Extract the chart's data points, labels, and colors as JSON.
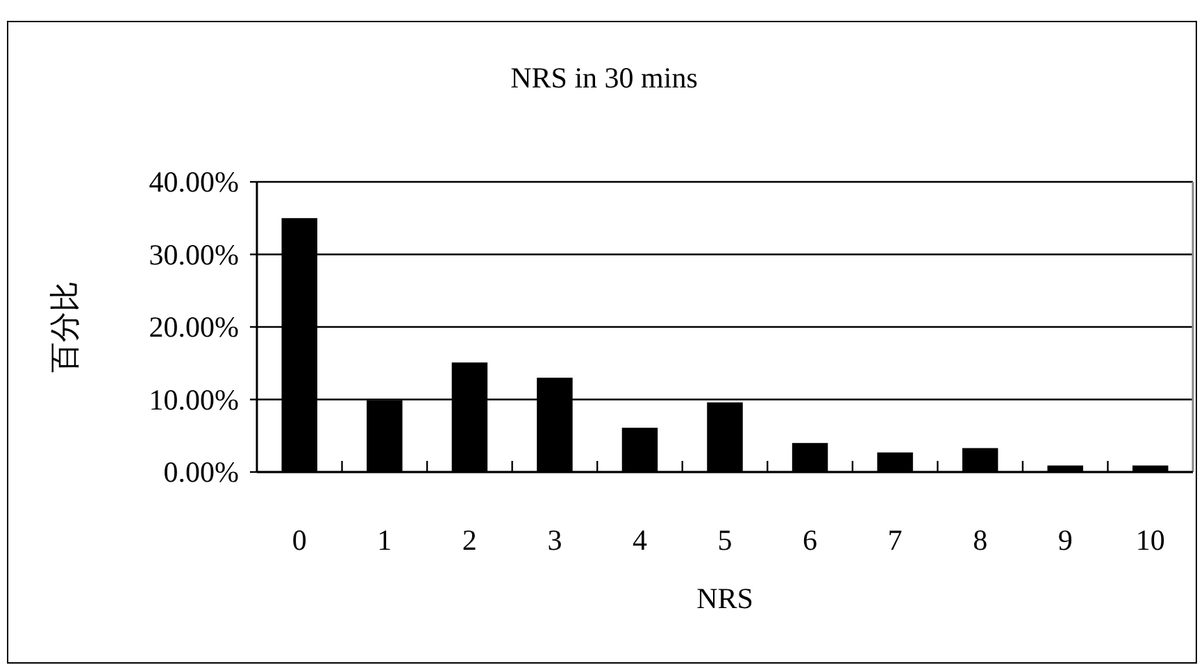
{
  "chart_data": {
    "type": "bar",
    "title": "NRS in 30 mins",
    "xlabel": "NRS",
    "ylabel": "百分比",
    "categories": [
      "0",
      "1",
      "2",
      "3",
      "4",
      "5",
      "6",
      "7",
      "8",
      "9",
      "10"
    ],
    "values": [
      35.0,
      9.9,
      15.1,
      13.0,
      6.1,
      9.6,
      4.0,
      2.7,
      3.3,
      0.9,
      0.9
    ],
    "color": "#000000",
    "ylim": [
      0,
      40
    ],
    "yticks": [
      {
        "value": 0,
        "label": "0.00%"
      },
      {
        "value": 10,
        "label": "10.00%"
      },
      {
        "value": 20,
        "label": "20.00%"
      },
      {
        "value": 30,
        "label": "30.00%"
      },
      {
        "value": 40,
        "label": "40.00%"
      }
    ],
    "grid": "y"
  }
}
